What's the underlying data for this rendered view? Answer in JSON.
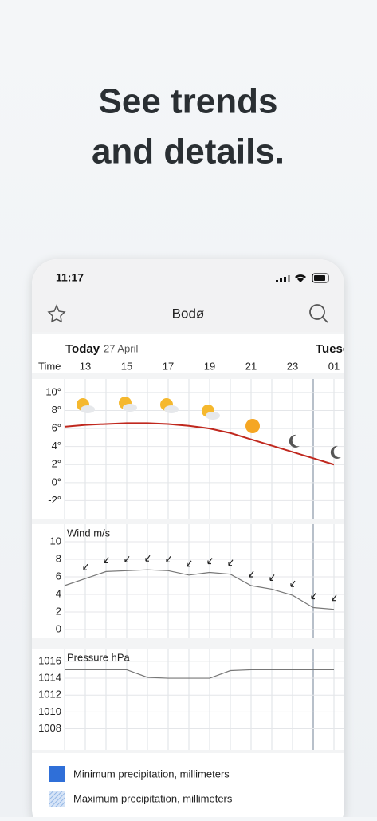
{
  "header": {
    "line1": "See trends",
    "line2": "and details."
  },
  "status": {
    "time": "11:17"
  },
  "nav": {
    "title": "Bodø"
  },
  "day": {
    "today": "Today",
    "date": "27 April",
    "next": "Tuesday"
  },
  "time_axis": {
    "label": "Time",
    "categories": [
      null,
      "13",
      null,
      "15",
      null,
      "17",
      null,
      "19",
      null,
      "21",
      null,
      "23",
      null,
      "01"
    ]
  },
  "chart_data": [
    {
      "type": "line",
      "color": "#c0281e",
      "ylim": [
        -4,
        11.5
      ],
      "yticks": [
        {
          "value": 10,
          "label": "10°"
        },
        {
          "value": 8,
          "label": "8°"
        },
        {
          "value": 6,
          "label": "6°"
        },
        {
          "value": 4,
          "label": "4°"
        },
        {
          "value": 2,
          "label": "2°"
        },
        {
          "value": 0,
          "label": "0°"
        },
        {
          "value": -2,
          "label": "-2°"
        }
      ],
      "values": [
        6.2,
        6.4,
        6.5,
        6.6,
        6.6,
        6.5,
        6.3,
        6.0,
        5.5,
        4.8,
        4.1,
        3.4,
        2.7,
        2.0
      ]
    },
    {
      "type": "line",
      "title": "Wind m/s",
      "color": "#777777",
      "ylim": [
        -1,
        12
      ],
      "yticks": [
        10,
        8,
        6,
        4,
        2,
        0
      ],
      "values": [
        5.0,
        5.8,
        6.6,
        6.7,
        6.8,
        6.7,
        6.2,
        6.5,
        6.3,
        5.0,
        4.6,
        3.9,
        2.5,
        2.3
      ]
    },
    {
      "type": "line",
      "title": "Pressure hPa",
      "color": "#777777",
      "ylim": [
        1005.5,
        1017.5
      ],
      "yticks": [
        1016,
        1014,
        1012,
        1010,
        1008
      ],
      "values": [
        1015,
        1015,
        1015,
        1015,
        1014.1,
        1014,
        1014,
        1014,
        1014.9,
        1015,
        1015,
        1015,
        1015,
        1015
      ]
    }
  ],
  "legend": [
    "Minimum precipitation, millimeters",
    "Maximum precipitation, millimeters"
  ]
}
